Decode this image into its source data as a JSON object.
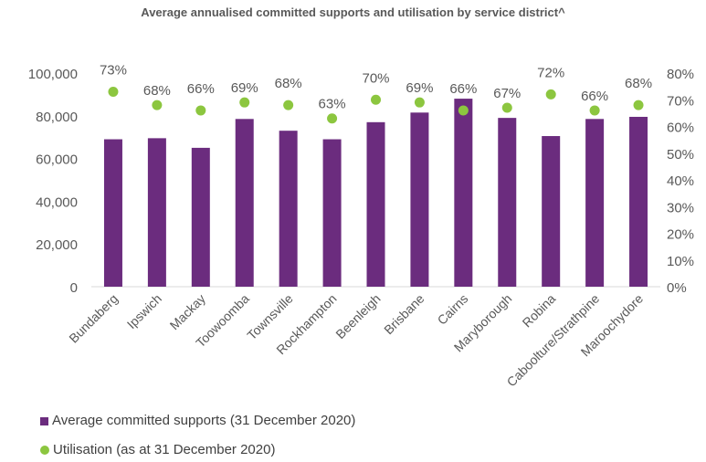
{
  "colors": {
    "bar": "#6B2C7E",
    "dot": "#8CC63F",
    "text": "#595959",
    "grid": "#D9D9D9"
  },
  "chart_data": {
    "type": "bar",
    "title": "Average annualised committed supports and utilisation by service district^",
    "categories": [
      "Bundaberg",
      "Ipswich",
      "Mackay",
      "Toowoomba",
      "Townsville",
      "Rockhampton",
      "Beenleigh",
      "Brisbane",
      "Cairns",
      "Maryborough",
      "Robina",
      "Caboolture/Strathpine",
      "Maroochydore"
    ],
    "series": [
      {
        "name": "Average committed supports (31 December 2020)",
        "type": "bar",
        "axis": "left",
        "values": [
          69000,
          69500,
          65000,
          78500,
          73000,
          69000,
          77000,
          81500,
          88000,
          79000,
          70500,
          78500,
          79500
        ]
      },
      {
        "name": "Utilisation (as at 31 December 2020)",
        "type": "scatter",
        "axis": "right",
        "values": [
          0.73,
          0.68,
          0.66,
          0.69,
          0.68,
          0.63,
          0.7,
          0.69,
          0.66,
          0.67,
          0.72,
          0.66,
          0.68
        ],
        "labels": [
          "73%",
          "68%",
          "66%",
          "69%",
          "68%",
          "63%",
          "70%",
          "69%",
          "66%",
          "67%",
          "72%",
          "66%",
          "68%"
        ]
      }
    ],
    "ylim": [
      0,
      100000
    ],
    "yticks": [
      "0",
      "20,000",
      "40,000",
      "60,000",
      "80,000",
      "100,000"
    ],
    "y2lim": [
      0,
      0.8
    ],
    "y2ticks": [
      "0%",
      "10%",
      "20%",
      "30%",
      "40%",
      "50%",
      "60%",
      "70%",
      "80%"
    ],
    "grid": false,
    "legend": "bottom-left"
  }
}
